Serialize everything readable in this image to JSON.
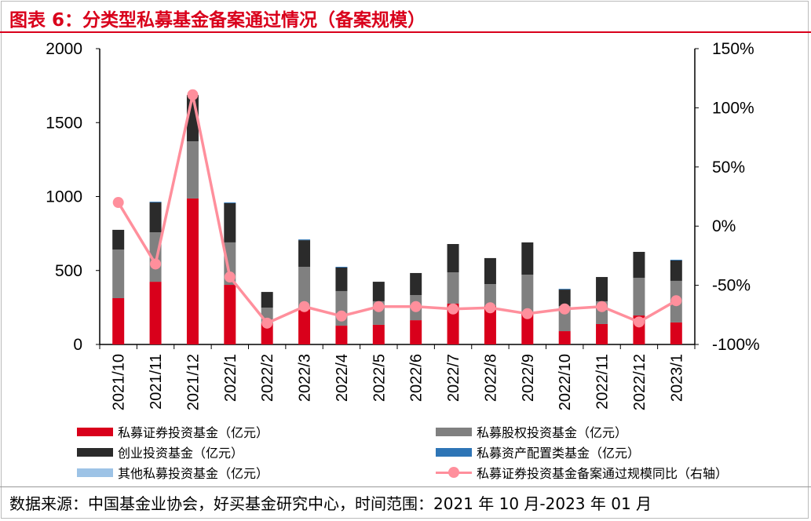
{
  "title": "图表 6：分类型私募基金备案通过情况（备案规模）",
  "source": "数据来源：中国基金业协会，好买基金研究中心，时间范围：2021 年 10 月-2023 年 01 月",
  "chart_data": {
    "type": "bar",
    "stacked": true,
    "categories": [
      "2021/10",
      "2021/11",
      "2021/12",
      "2022/1",
      "2022/2",
      "2022/3",
      "2022/4",
      "2022/5",
      "2022/6",
      "2022/7",
      "2022/8",
      "2022/9",
      "2022/10",
      "2022/11",
      "2022/12",
      "2023/1"
    ],
    "left_axis": {
      "ylim": [
        0,
        2000
      ],
      "ticks": [
        "0",
        "500",
        "1000",
        "1500",
        "2000"
      ],
      "tick_values": [
        0,
        500,
        1000,
        1500,
        2000
      ]
    },
    "right_axis": {
      "ylim": [
        -100,
        150
      ],
      "ticks": [
        "-100%",
        "-50%",
        "0%",
        "50%",
        "100%",
        "150%"
      ],
      "tick_values": [
        -100,
        -50,
        0,
        50,
        100,
        150
      ]
    },
    "series": [
      {
        "name": "私募证券投资基金（亿元）",
        "color": "#d9001b",
        "values": [
          313,
          424,
          987,
          403,
          143,
          244,
          127,
          133,
          164,
          276,
          260,
          207,
          90,
          138,
          196,
          149
        ]
      },
      {
        "name": "私募股权投资基金（亿元）",
        "color": "#808080",
        "values": [
          329,
          334,
          387,
          287,
          106,
          281,
          234,
          159,
          170,
          212,
          148,
          265,
          170,
          154,
          255,
          281
        ]
      },
      {
        "name": "创业投资基金（亿元）",
        "color": "#2b2b2b",
        "values": [
          133,
          202,
          313,
          265,
          106,
          180,
          159,
          132,
          149,
          191,
          176,
          218,
          111,
          164,
          175,
          138
        ]
      },
      {
        "name": "私募资产配置类基金（亿元）",
        "color": "#2e75b6",
        "values": [
          0,
          5,
          0,
          5,
          0,
          5,
          5,
          0,
          0,
          0,
          0,
          0,
          5,
          0,
          0,
          5
        ]
      },
      {
        "name": "其他私募投资基金（亿元）",
        "color": "#9dc3e6",
        "values": [
          0,
          0,
          0,
          0,
          0,
          0,
          0,
          0,
          0,
          0,
          0,
          0,
          0,
          0,
          0,
          0
        ]
      }
    ],
    "line": {
      "name": "私募证券投资基金备案通过规模同比（右轴）",
      "color": "#ff8f9c",
      "axis": "right",
      "values": [
        20,
        -32,
        111,
        -43,
        -82,
        -68,
        -76,
        -68,
        -68,
        -70,
        -69,
        -74,
        -70,
        -68,
        -81,
        -63
      ]
    }
  }
}
